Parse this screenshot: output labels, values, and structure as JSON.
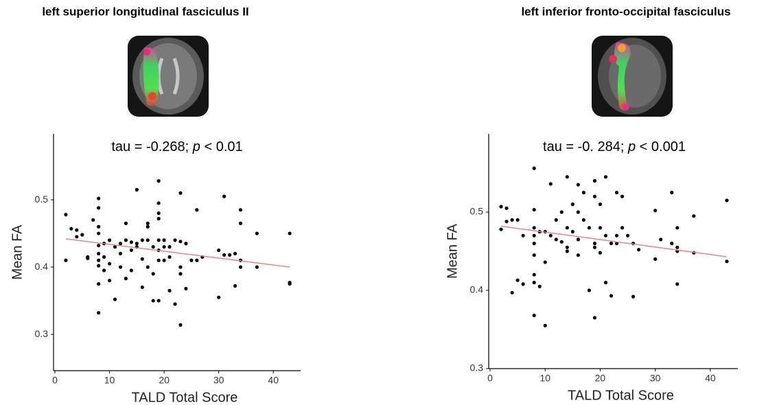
{
  "chart_data": [
    {
      "type": "scatter",
      "title": "left superior longitudinal fasciculus II",
      "annotation": [
        "tau = -0.268; ",
        "p",
        " < 0.01"
      ],
      "x_label": "TALD Total Score",
      "y_label": "Mean FA",
      "xlim": [
        0,
        45
      ],
      "ylim": [
        0.246,
        0.598
      ],
      "xticks": [
        0,
        10,
        20,
        30,
        40
      ],
      "yticks": [
        0.3,
        0.4,
        0.5
      ],
      "color": "#000000",
      "x": [
        2,
        2,
        3,
        4,
        4,
        5,
        6,
        7,
        6,
        8,
        8,
        8,
        8,
        8,
        8,
        8,
        8,
        8,
        8,
        9,
        9,
        9,
        10,
        10,
        10,
        11,
        11,
        12,
        12,
        12,
        13,
        13,
        13,
        14,
        14,
        14,
        15,
        15,
        15,
        16,
        16,
        16,
        17,
        17,
        17,
        17,
        18,
        18,
        19,
        19,
        19,
        19,
        19,
        19,
        19,
        19,
        18,
        20,
        20,
        20,
        21,
        21,
        21,
        22,
        22,
        23,
        23,
        23,
        23,
        23,
        24,
        24,
        25,
        26,
        26,
        27,
        30,
        30,
        31,
        31,
        32,
        33,
        33,
        34,
        34,
        34,
        34,
        37,
        37,
        43,
        43,
        43
      ],
      "values": [
        0.478,
        0.41,
        0.457,
        0.455,
        0.445,
        0.448,
        0.415,
        0.47,
        0.413,
        0.502,
        0.488,
        0.46,
        0.45,
        0.432,
        0.42,
        0.41,
        0.402,
        0.375,
        0.332,
        0.435,
        0.415,
        0.395,
        0.44,
        0.405,
        0.38,
        0.352,
        0.43,
        0.435,
        0.4,
        0.42,
        0.465,
        0.44,
        0.383,
        0.437,
        0.425,
        0.395,
        0.515,
        0.435,
        0.43,
        0.44,
        0.412,
        0.37,
        0.465,
        0.46,
        0.44,
        0.4,
        0.43,
        0.39,
        0.528,
        0.495,
        0.48,
        0.472,
        0.44,
        0.425,
        0.41,
        0.35,
        0.35,
        0.44,
        0.43,
        0.41,
        0.43,
        0.365,
        0.415,
        0.345,
        0.44,
        0.51,
        0.438,
        0.4,
        0.39,
        0.314,
        0.435,
        0.368,
        0.41,
        0.485,
        0.41,
        0.415,
        0.425,
        0.355,
        0.505,
        0.418,
        0.418,
        0.42,
        0.372,
        0.485,
        0.465,
        0.41,
        0.4,
        0.45,
        0.4,
        0.45,
        0.377,
        0.375
      ],
      "fit": {
        "x": [
          2,
          43
        ],
        "values": [
          0.442,
          0.4
        ],
        "color": "#f08080"
      }
    },
    {
      "type": "scatter",
      "title": "left inferior fronto-occipital fasciculus",
      "annotation": [
        "tau = -0. 284; ",
        "p",
        " < 0.001"
      ],
      "x_label": "TALD Total Score",
      "y_label": "Mean FA",
      "xlim": [
        0,
        45
      ],
      "ylim": [
        0.3,
        0.6
      ],
      "xticks": [
        0,
        10,
        20,
        30,
        40
      ],
      "yticks": [
        0.3,
        0.4,
        0.5
      ],
      "color": "#000000",
      "x": [
        2,
        2,
        3,
        3,
        4,
        4,
        5,
        5,
        6,
        6,
        8,
        8,
        8,
        8,
        8,
        8,
        8,
        8,
        8,
        9,
        9,
        10,
        10,
        10,
        11,
        11,
        12,
        12,
        13,
        13,
        14,
        14,
        14,
        14,
        15,
        15,
        16,
        16,
        16,
        16,
        17,
        17,
        18,
        18,
        19,
        19,
        19,
        19,
        19,
        20,
        20,
        20,
        21,
        21,
        21,
        22,
        22,
        23,
        23,
        23,
        24,
        24,
        25,
        26,
        26,
        27,
        30,
        30,
        31,
        33,
        33,
        34,
        34,
        34,
        34,
        37,
        37,
        43,
        43
      ],
      "values": [
        0.507,
        0.478,
        0.505,
        0.488,
        0.49,
        0.397,
        0.49,
        0.413,
        0.47,
        0.408,
        0.556,
        0.503,
        0.48,
        0.47,
        0.46,
        0.445,
        0.42,
        0.41,
        0.368,
        0.475,
        0.405,
        0.475,
        0.436,
        0.355,
        0.536,
        0.47,
        0.465,
        0.49,
        0.5,
        0.462,
        0.545,
        0.48,
        0.455,
        0.45,
        0.475,
        0.51,
        0.535,
        0.5,
        0.465,
        0.445,
        0.525,
        0.49,
        0.4,
        0.48,
        0.54,
        0.52,
        0.46,
        0.455,
        0.365,
        0.51,
        0.48,
        0.448,
        0.545,
        0.47,
        0.41,
        0.46,
        0.393,
        0.525,
        0.47,
        0.46,
        0.52,
        0.48,
        0.47,
        0.46,
        0.392,
        0.452,
        0.502,
        0.44,
        0.465,
        0.525,
        0.46,
        0.48,
        0.455,
        0.45,
        0.408,
        0.495,
        0.448,
        0.515,
        0.437
      ],
      "fit": {
        "x": [
          2,
          43
        ],
        "values": [
          0.482,
          0.443
        ],
        "color": "#f08080"
      }
    }
  ]
}
